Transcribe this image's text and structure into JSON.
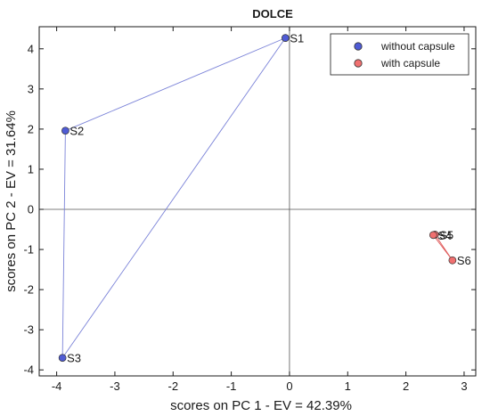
{
  "chart_data": {
    "type": "scatter",
    "title": "DOLCE",
    "xlabel": "scores on PC 1 - EV = 42.39%",
    "ylabel": "scores on PC 2 - EV = 31.64%",
    "xlim": [
      -4.3,
      3.2
    ],
    "ylim": [
      -4.15,
      4.55
    ],
    "xticks": [
      -4,
      -3,
      -2,
      -1,
      0,
      1,
      2,
      3
    ],
    "yticks": [
      -4,
      -3,
      -2,
      -1,
      0,
      1,
      2,
      3,
      4
    ],
    "grid": false,
    "zero_lines": true,
    "legend_position": "top-right",
    "series": [
      {
        "name": "without capsule",
        "color": "#4f5bd5",
        "line_color": "#7b83d8",
        "points": [
          {
            "label": "S1",
            "x": -0.07,
            "y": 4.27
          },
          {
            "label": "S2",
            "x": -3.85,
            "y": 1.96
          },
          {
            "label": "S3",
            "x": -3.9,
            "y": -3.7
          }
        ]
      },
      {
        "name": "with capsule",
        "color": "#f07070",
        "line_color": "#e05a5a",
        "points": [
          {
            "label": "S5",
            "x": 2.5,
            "y": -0.63
          },
          {
            "label": "S4",
            "x": 2.47,
            "y": -0.64
          },
          {
            "label": "S6",
            "x": 2.8,
            "y": -1.27
          }
        ]
      }
    ]
  }
}
